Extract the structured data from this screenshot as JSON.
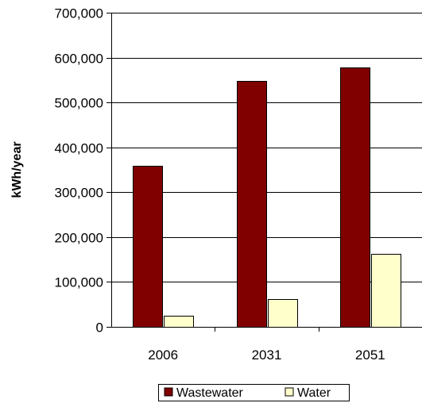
{
  "chart_data": {
    "type": "bar",
    "categories": [
      "2006",
      "2031",
      "2051"
    ],
    "series": [
      {
        "name": "Wastewater",
        "values": [
          358000,
          548000,
          578000
        ],
        "color": "#800000"
      },
      {
        "name": "Water",
        "values": [
          24000,
          61000,
          162000
        ],
        "color": "#FFFFCC"
      }
    ],
    "ylabel": "kWh/year",
    "xlabel": "",
    "ylim": [
      0,
      700000
    ],
    "yticks": [
      0,
      100000,
      200000,
      300000,
      400000,
      500000,
      600000,
      700000
    ],
    "ytick_labels": [
      "0",
      "100,000",
      "200,000",
      "300,000",
      "400,000",
      "500,000",
      "600,000",
      "700,000"
    ],
    "grid": true,
    "legend_position": "bottom"
  }
}
